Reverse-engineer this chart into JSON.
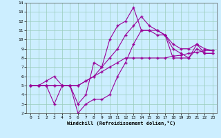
{
  "xlabel": "Windchill (Refroidissement éolien,°C)",
  "background_color": "#cceeff",
  "grid_color": "#99ccbb",
  "line_color": "#990099",
  "xlim": [
    -0.5,
    23.5
  ],
  "ylim": [
    2,
    14
  ],
  "xticks": [
    0,
    1,
    2,
    3,
    4,
    5,
    6,
    7,
    8,
    9,
    10,
    11,
    12,
    13,
    14,
    15,
    16,
    17,
    18,
    19,
    20,
    21,
    22,
    23
  ],
  "yticks": [
    2,
    3,
    4,
    5,
    6,
    7,
    8,
    9,
    10,
    11,
    12,
    13,
    14
  ],
  "series1_x": [
    0,
    1,
    2,
    3,
    4,
    5,
    6,
    7,
    8,
    9,
    10,
    11,
    12,
    13,
    14,
    15,
    16,
    17,
    18,
    19,
    20,
    21,
    22,
    23
  ],
  "series1_y": [
    5.0,
    5.0,
    5.0,
    5.0,
    5.0,
    5.0,
    5.0,
    5.5,
    6.0,
    6.5,
    7.0,
    7.5,
    8.0,
    8.0,
    8.0,
    8.0,
    8.0,
    8.0,
    8.2,
    8.3,
    8.5,
    8.6,
    8.8,
    8.8
  ],
  "series2_x": [
    0,
    1,
    2,
    3,
    4,
    5,
    6,
    7,
    8,
    9,
    10,
    11,
    12,
    13,
    14,
    15,
    16,
    17,
    18,
    19,
    20,
    21,
    22,
    23
  ],
  "series2_y": [
    5.0,
    5.0,
    5.0,
    5.0,
    5.0,
    5.0,
    5.0,
    5.5,
    6.0,
    7.0,
    8.0,
    9.0,
    10.5,
    11.5,
    12.5,
    11.5,
    11.0,
    10.5,
    9.5,
    9.0,
    9.0,
    9.5,
    9.0,
    8.8
  ],
  "series3_x": [
    0,
    1,
    2,
    3,
    4,
    5,
    6,
    7,
    8,
    9,
    10,
    11,
    12,
    13,
    14,
    15,
    16,
    17,
    18,
    19,
    20,
    21,
    22,
    23
  ],
  "series3_y": [
    5.0,
    5.0,
    5.5,
    6.0,
    5.0,
    5.0,
    3.0,
    4.0,
    7.5,
    7.0,
    10.0,
    11.5,
    12.0,
    13.5,
    11.0,
    11.0,
    11.0,
    10.5,
    8.0,
    8.0,
    8.0,
    9.5,
    8.5,
    8.5
  ],
  "series4_x": [
    0,
    1,
    2,
    3,
    4,
    5,
    6,
    7,
    8,
    9,
    10,
    11,
    12,
    13,
    14,
    15,
    16,
    17,
    18,
    19,
    20,
    21,
    22,
    23
  ],
  "series4_y": [
    5.0,
    5.0,
    5.0,
    3.0,
    5.0,
    5.0,
    2.0,
    3.0,
    3.5,
    3.5,
    4.0,
    6.0,
    7.5,
    9.5,
    11.0,
    11.0,
    10.5,
    10.5,
    9.0,
    8.5,
    8.0,
    9.0,
    8.5,
    8.5
  ]
}
